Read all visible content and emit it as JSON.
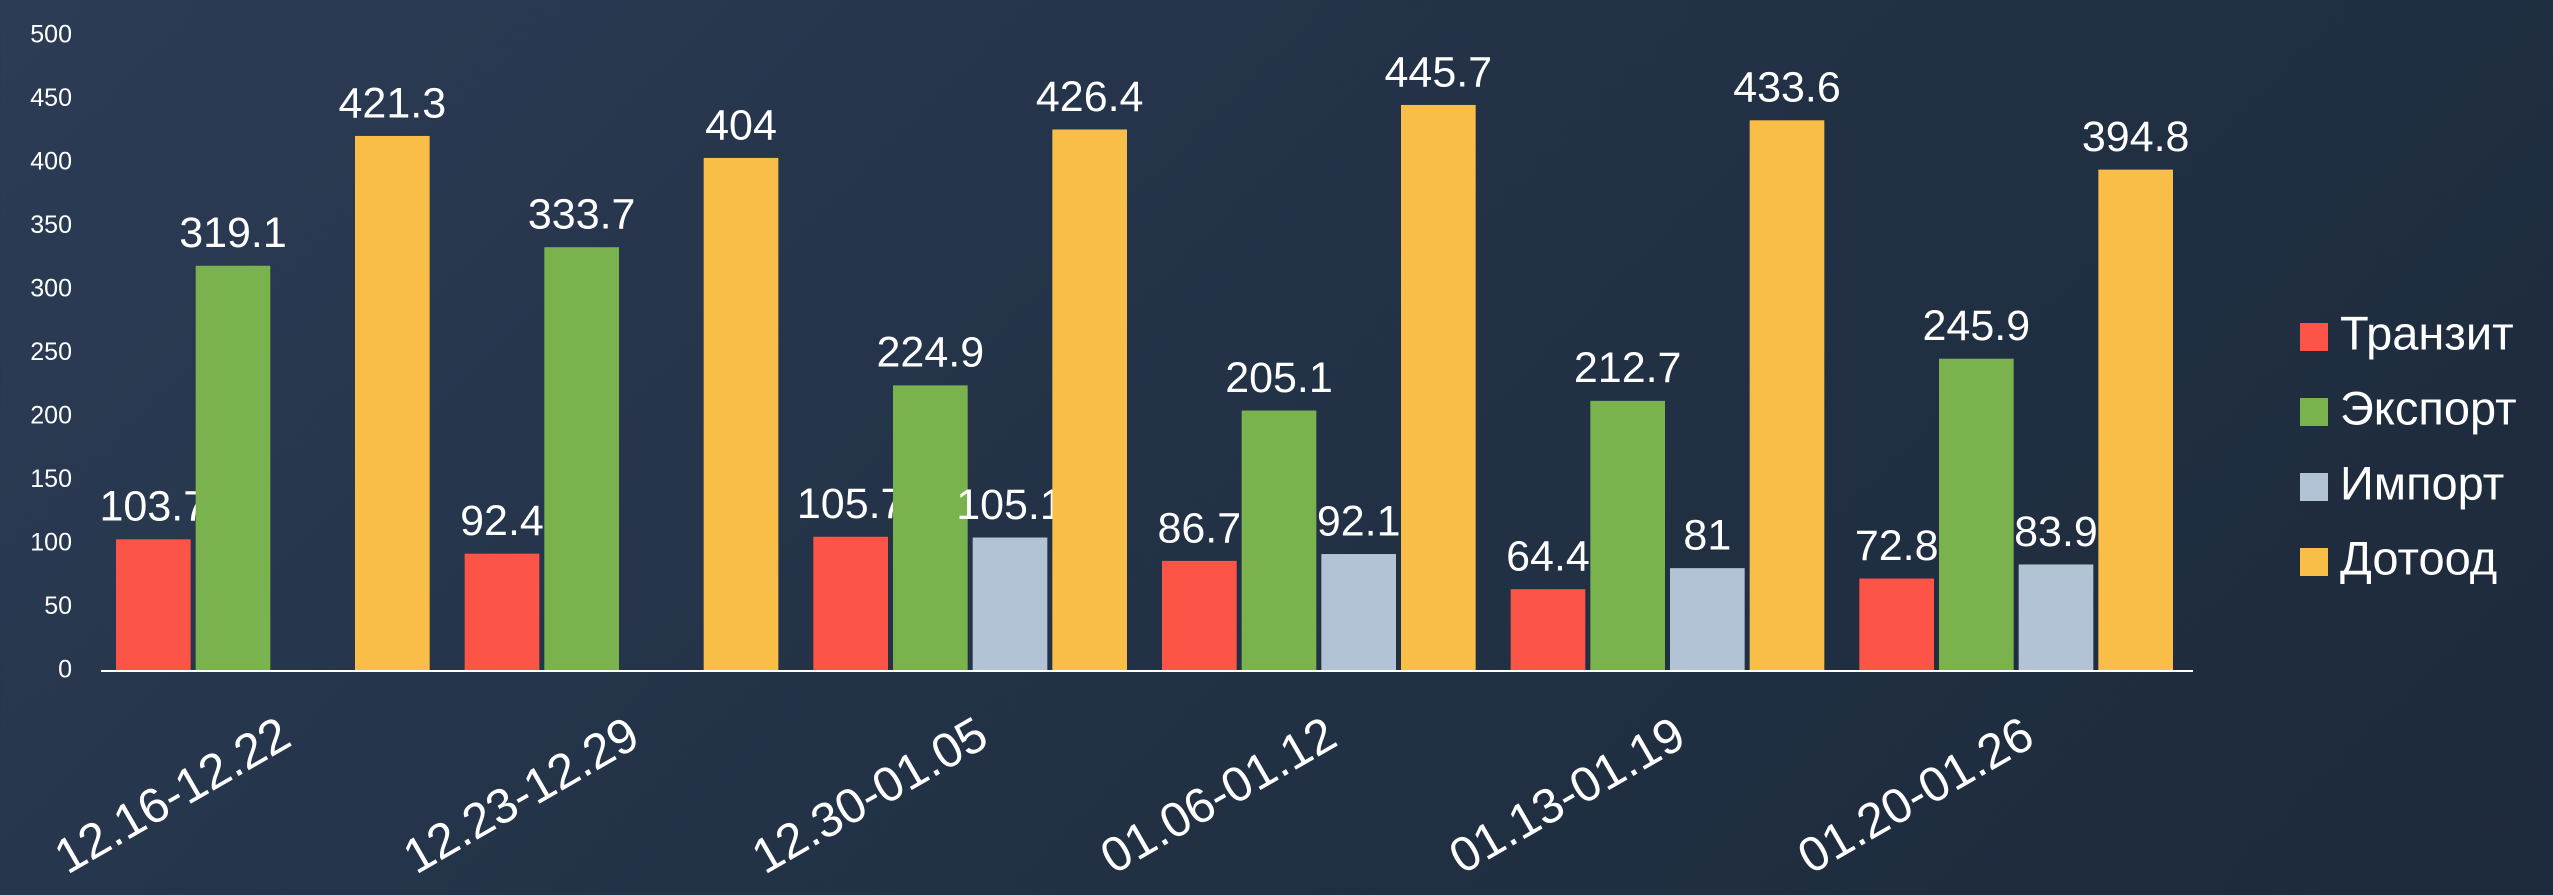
{
  "chart_data": {
    "type": "bar",
    "categories": [
      "12.16-12.22",
      "12.23-12.29",
      "12.30-01.05",
      "01.06-01.12",
      "01.13-01.19",
      "01.20-01.26"
    ],
    "series": [
      {
        "name": "Транзит",
        "color": "#fc5446",
        "values": [
          103.7,
          92.4,
          105.7,
          86.7,
          64.4,
          72.8
        ]
      },
      {
        "name": "Экспорт",
        "color": "#7ab24e",
        "values": [
          319.1,
          333.7,
          224.9,
          205.1,
          212.7,
          245.9
        ]
      },
      {
        "name": "Импорт",
        "color": "#b3c3d6",
        "values": [
          null,
          null,
          105.1,
          92.1,
          81,
          83.9
        ]
      },
      {
        "name": "Дотоод",
        "color": "#f9be48",
        "values": [
          421.3,
          404,
          426.4,
          445.7,
          433.6,
          394.8
        ]
      }
    ],
    "ylim": [
      0,
      500
    ],
    "yticks": [
      0,
      50,
      100,
      150,
      200,
      250,
      300,
      350,
      400,
      450,
      500
    ],
    "grid": false,
    "legend": "right"
  }
}
